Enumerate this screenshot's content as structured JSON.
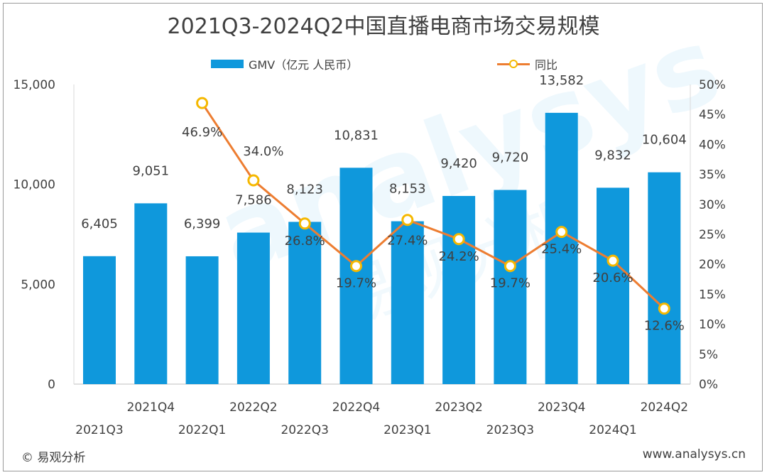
{
  "title": "2021Q3-2024Q2中国直播电商市场交易规模",
  "footer": {
    "left": "© 易观分析",
    "right": "www.analysys.cn"
  },
  "watermark": "analysys 易观分析",
  "colors": {
    "bar": "#0f98dc",
    "line": "#ed7d31",
    "marker_fill": "#ffffff",
    "marker_stroke": "#f5b800"
  },
  "chart_data": {
    "type": "bar+line",
    "categories": [
      "2021Q3",
      "2021Q4",
      "2022Q1",
      "2022Q2",
      "2022Q3",
      "2022Q4",
      "2023Q1",
      "2023Q2",
      "2023Q3",
      "2023Q4",
      "2024Q1",
      "2024Q2"
    ],
    "series": [
      {
        "name": "GMV（亿元 人民币）",
        "type": "bar",
        "axis": "left",
        "values": [
          6405,
          9051,
          6399,
          7586,
          8123,
          10831,
          8153,
          9420,
          9720,
          13582,
          9832,
          10604
        ],
        "labels": [
          "6,405",
          "9,051",
          "6,399",
          "7,586",
          "8,123",
          "10,831",
          "8,153",
          "9,420",
          "9,720",
          "13,582",
          "9,832",
          "10,604"
        ]
      },
      {
        "name": "同比",
        "type": "line",
        "axis": "right",
        "values": [
          null,
          null,
          46.9,
          34.0,
          26.8,
          19.7,
          27.4,
          24.2,
          19.7,
          25.4,
          20.6,
          12.6
        ],
        "labels": [
          "",
          "",
          "46.9%",
          "34.0%",
          "26.8%",
          "19.7%",
          "27.4%",
          "24.2%",
          "19.7%",
          "25.4%",
          "20.6%",
          "12.6%"
        ]
      }
    ],
    "left_axis": {
      "range": [
        0,
        15000
      ],
      "ticks": [
        "0",
        "5,000",
        "10,000",
        "15,000"
      ]
    },
    "right_axis": {
      "range": [
        0,
        50
      ],
      "ticks": [
        "0%",
        "5%",
        "10%",
        "15%",
        "20%",
        "25%",
        "30%",
        "35%",
        "40%",
        "45%",
        "50%"
      ]
    },
    "grid": false,
    "legend": "top"
  }
}
